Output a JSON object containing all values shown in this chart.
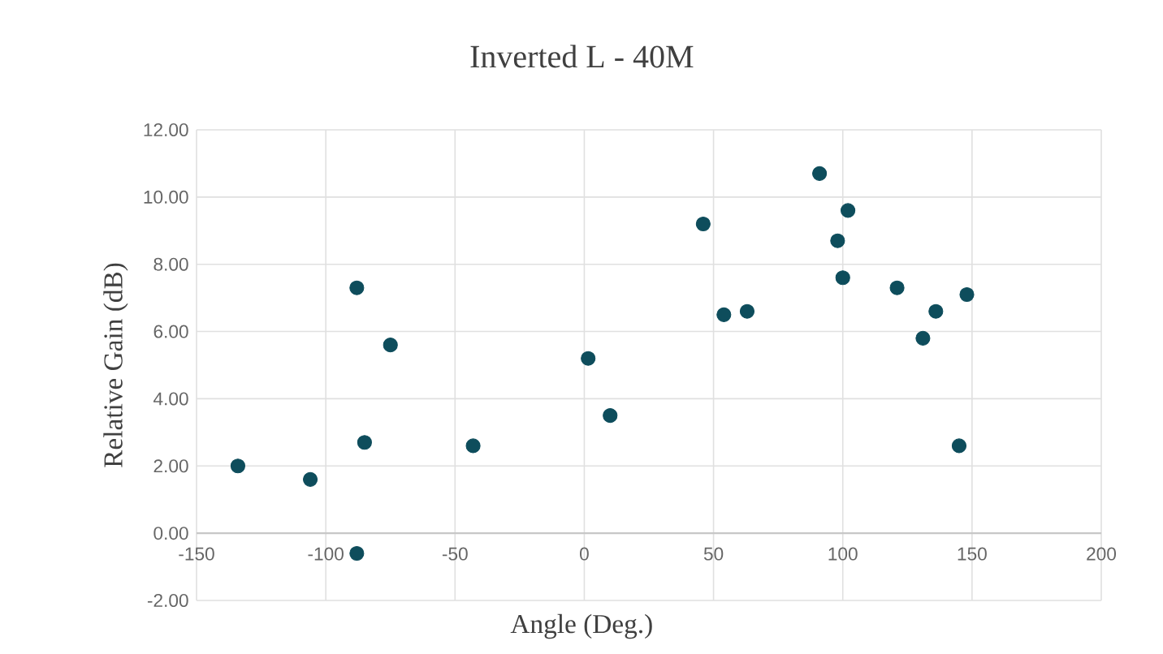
{
  "chart_data": {
    "type": "scatter",
    "title": "Inverted L - 40M",
    "xlabel": "Angle (Deg.)",
    "ylabel": "Relative Gain (dB)",
    "x": [
      -134,
      -106,
      -88,
      -75,
      -85,
      -43,
      -88,
      1.5,
      10,
      46,
      54,
      63,
      91,
      102,
      98,
      100,
      121,
      136,
      131,
      148,
      145
    ],
    "series": [
      {
        "color": "#0e4d5c",
        "values": [
          2.0,
          1.6,
          7.3,
          5.6,
          2.7,
          2.6,
          -0.6,
          5.2,
          3.5,
          9.2,
          6.5,
          6.6,
          10.7,
          9.6,
          8.7,
          7.6,
          7.3,
          6.6,
          5.8,
          7.1,
          2.6
        ]
      }
    ],
    "xlim": [
      -150,
      200
    ],
    "xticks": [
      -150,
      -100,
      -50,
      0,
      50,
      100,
      150,
      200
    ],
    "ylim": [
      -2,
      12
    ],
    "yticks": [
      {
        "value": -2,
        "label": "-2.00"
      },
      {
        "value": 0,
        "label": "0.00"
      },
      {
        "value": 2,
        "label": "2.00"
      },
      {
        "value": 4,
        "label": "4.00"
      },
      {
        "value": 6,
        "label": "6.00"
      },
      {
        "value": 8,
        "label": "8.00"
      },
      {
        "value": 10,
        "label": "10.00"
      },
      {
        "value": 12,
        "label": "12.00"
      }
    ],
    "grid": true,
    "marker": "circle"
  }
}
